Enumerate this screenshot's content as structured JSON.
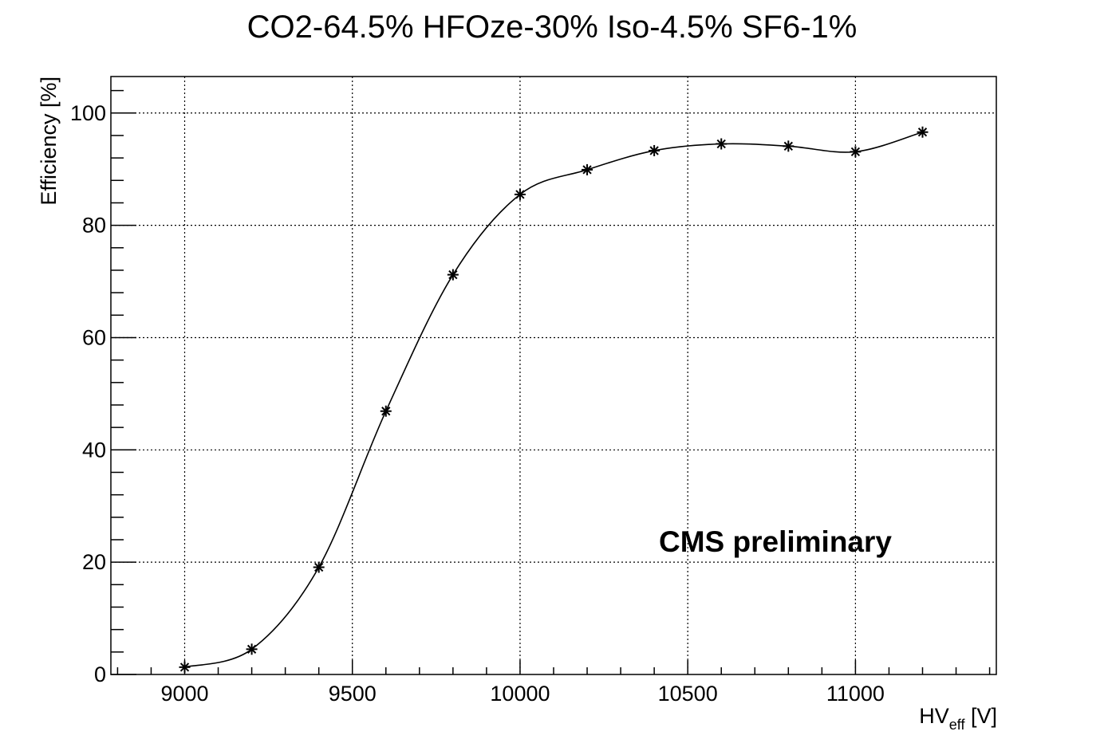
{
  "chart_data": {
    "type": "line",
    "title": "CO2-64.5% HFOze-30% Iso-4.5% SF6-1%",
    "xlabel_main": "HV",
    "xlabel_sub": "eff",
    "xlabel_unit": " [V]",
    "ylabel": "Efficiency [%]",
    "xlim": [
      8780,
      11420
    ],
    "ylim": [
      0,
      106.5
    ],
    "xticks": [
      9000,
      9500,
      10000,
      10500,
      11000
    ],
    "yticks": [
      0,
      20,
      40,
      60,
      80,
      100
    ],
    "grid": true,
    "marker": "star",
    "series": [
      {
        "x": [
          9000,
          9200,
          9400,
          9600,
          9800,
          10000,
          10200,
          10400,
          10600,
          10800,
          11000,
          11200
        ],
        "y": [
          1.3,
          4.5,
          19.1,
          46.9,
          71.2,
          85.5,
          89.9,
          93.3,
          94.5,
          94.1,
          93.1,
          96.6
        ]
      }
    ],
    "annotation": "CMS preliminary"
  }
}
